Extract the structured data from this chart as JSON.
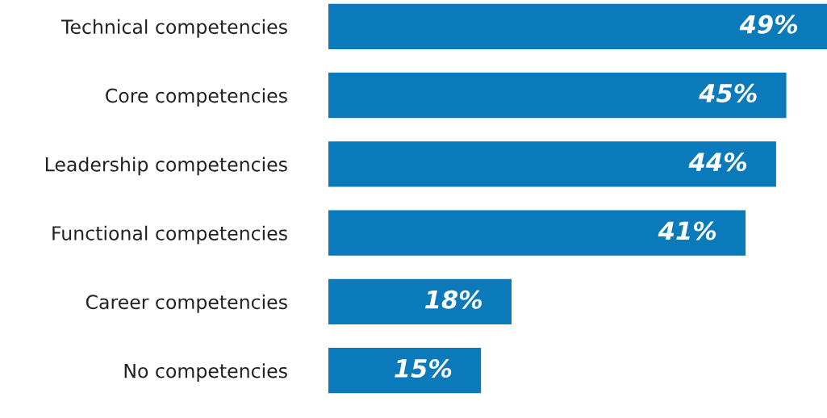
{
  "chart_data": {
    "type": "bar",
    "orientation": "horizontal",
    "categories": [
      "Technical competencies",
      "Core competencies",
      "Leadership competencies",
      "Functional competencies",
      "Career competencies",
      "No competencies"
    ],
    "values": [
      49,
      45,
      44,
      41,
      18,
      15
    ],
    "value_labels": [
      "49%",
      "45%",
      "44%",
      "41%",
      "18%",
      "15%"
    ],
    "color": "#0b7abb",
    "xlim": [
      0,
      49
    ],
    "tick_labels": "y",
    "grid": false,
    "legend": false
  }
}
